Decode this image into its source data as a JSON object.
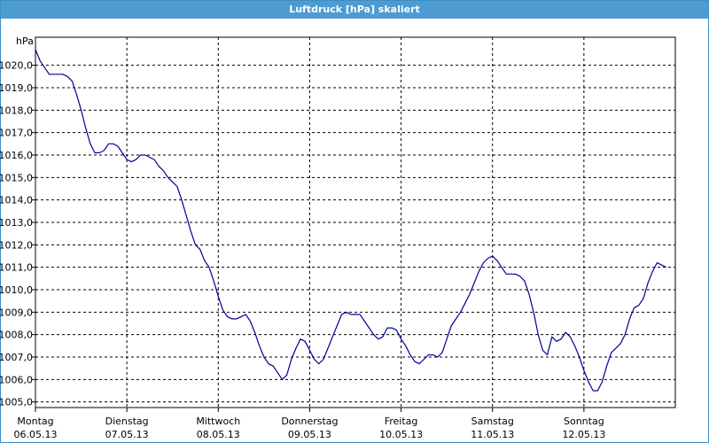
{
  "window": {
    "title": "Luftdruck [hPa] skaliert"
  },
  "chart_data": {
    "type": "line",
    "title": "Luftdruck [hPa] skaliert",
    "ylabel": "hPa",
    "xlabel": "",
    "ylim": [
      1004.75,
      1021.25
    ],
    "yticks": [
      1005,
      1006,
      1007,
      1008,
      1009,
      1010,
      1011,
      1012,
      1013,
      1014,
      1015,
      1016,
      1017,
      1018,
      1019,
      1020
    ],
    "ytick_labels": [
      "1005,0",
      "1006,0",
      "1007,0",
      "1008,0",
      "1009,0",
      "1010,0",
      "1011,0",
      "1012,0",
      "1013,0",
      "1014,0",
      "1015,0",
      "1016,0",
      "1017,0",
      "1018,0",
      "1019,0",
      "1020,0"
    ],
    "xlim": [
      0,
      7
    ],
    "x_unit": "days since 06.05.13 00:00",
    "x_ticks": [
      {
        "day": "Montag",
        "date": "06.05.13"
      },
      {
        "day": "Dienstag",
        "date": "07.05.13"
      },
      {
        "day": "Mittwoch",
        "date": "08.05.13"
      },
      {
        "day": "Donnerstag",
        "date": "09.05.13"
      },
      {
        "day": "Freitag",
        "date": "10.05.13"
      },
      {
        "day": "Samstag",
        "date": "11.05.13"
      },
      {
        "day": "Sonntag",
        "date": "12.05.13"
      }
    ],
    "grid": true,
    "line_color": "#000099",
    "series": [
      {
        "name": "Luftdruck",
        "points": [
          [
            0.0,
            1020.7
          ],
          [
            0.05,
            1020.2
          ],
          [
            0.1,
            1019.9
          ],
          [
            0.15,
            1019.6
          ],
          [
            0.2,
            1019.6
          ],
          [
            0.25,
            1019.6
          ],
          [
            0.3,
            1019.6
          ],
          [
            0.35,
            1019.5
          ],
          [
            0.4,
            1019.3
          ],
          [
            0.45,
            1018.7
          ],
          [
            0.5,
            1018.0
          ],
          [
            0.55,
            1017.2
          ],
          [
            0.6,
            1016.5
          ],
          [
            0.65,
            1016.1
          ],
          [
            0.7,
            1016.1
          ],
          [
            0.75,
            1016.2
          ],
          [
            0.8,
            1016.5
          ],
          [
            0.85,
            1016.5
          ],
          [
            0.9,
            1016.4
          ],
          [
            0.95,
            1016.1
          ],
          [
            1.0,
            1015.8
          ],
          [
            1.05,
            1015.7
          ],
          [
            1.1,
            1015.8
          ],
          [
            1.15,
            1016.0
          ],
          [
            1.2,
            1016.0
          ],
          [
            1.25,
            1015.9
          ],
          [
            1.3,
            1015.8
          ],
          [
            1.35,
            1015.5
          ],
          [
            1.4,
            1015.3
          ],
          [
            1.45,
            1015.0
          ],
          [
            1.5,
            1014.8
          ],
          [
            1.55,
            1014.6
          ],
          [
            1.6,
            1014.0
          ],
          [
            1.65,
            1013.3
          ],
          [
            1.7,
            1012.6
          ],
          [
            1.75,
            1012.0
          ],
          [
            1.8,
            1011.8
          ],
          [
            1.85,
            1011.3
          ],
          [
            1.9,
            1011.0
          ],
          [
            1.95,
            1010.4
          ],
          [
            2.0,
            1009.7
          ],
          [
            2.05,
            1009.1
          ],
          [
            2.1,
            1008.8
          ],
          [
            2.15,
            1008.7
          ],
          [
            2.2,
            1008.7
          ],
          [
            2.25,
            1008.8
          ],
          [
            2.3,
            1008.9
          ],
          [
            2.35,
            1008.6
          ],
          [
            2.4,
            1008.1
          ],
          [
            2.45,
            1007.5
          ],
          [
            2.5,
            1007.0
          ],
          [
            2.55,
            1006.7
          ],
          [
            2.6,
            1006.6
          ],
          [
            2.65,
            1006.3
          ],
          [
            2.7,
            1006.0
          ],
          [
            2.75,
            1006.2
          ],
          [
            2.8,
            1006.9
          ],
          [
            2.85,
            1007.4
          ],
          [
            2.9,
            1007.8
          ],
          [
            2.95,
            1007.7
          ],
          [
            3.0,
            1007.3
          ],
          [
            3.05,
            1006.9
          ],
          [
            3.1,
            1006.7
          ],
          [
            3.15,
            1006.9
          ],
          [
            3.2,
            1007.4
          ],
          [
            3.25,
            1007.9
          ],
          [
            3.3,
            1008.4
          ],
          [
            3.35,
            1008.9
          ],
          [
            3.4,
            1009.0
          ],
          [
            3.45,
            1008.9
          ],
          [
            3.5,
            1008.9
          ],
          [
            3.55,
            1008.9
          ],
          [
            3.6,
            1008.6
          ],
          [
            3.65,
            1008.3
          ],
          [
            3.7,
            1008.0
          ],
          [
            3.75,
            1007.8
          ],
          [
            3.8,
            1007.9
          ],
          [
            3.85,
            1008.3
          ],
          [
            3.9,
            1008.3
          ],
          [
            3.95,
            1008.2
          ],
          [
            4.0,
            1007.8
          ],
          [
            4.05,
            1007.5
          ],
          [
            4.1,
            1007.1
          ],
          [
            4.15,
            1006.8
          ],
          [
            4.2,
            1006.7
          ],
          [
            4.25,
            1006.9
          ],
          [
            4.3,
            1007.1
          ],
          [
            4.35,
            1007.1
          ],
          [
            4.4,
            1007.0
          ],
          [
            4.45,
            1007.2
          ],
          [
            4.5,
            1007.8
          ],
          [
            4.55,
            1008.4
          ],
          [
            4.6,
            1008.7
          ],
          [
            4.65,
            1009.0
          ],
          [
            4.7,
            1009.4
          ],
          [
            4.75,
            1009.8
          ],
          [
            4.8,
            1010.3
          ],
          [
            4.85,
            1010.8
          ],
          [
            4.9,
            1011.2
          ],
          [
            4.95,
            1011.4
          ],
          [
            5.0,
            1011.5
          ],
          [
            5.05,
            1011.3
          ],
          [
            5.1,
            1011.0
          ],
          [
            5.15,
            1010.7
          ],
          [
            5.2,
            1010.7
          ],
          [
            5.25,
            1010.7
          ],
          [
            5.3,
            1010.6
          ],
          [
            5.35,
            1010.4
          ],
          [
            5.4,
            1009.8
          ],
          [
            5.45,
            1009.0
          ],
          [
            5.5,
            1008.0
          ],
          [
            5.55,
            1007.3
          ],
          [
            5.6,
            1007.1
          ],
          [
            5.65,
            1007.9
          ],
          [
            5.7,
            1007.7
          ],
          [
            5.75,
            1007.8
          ],
          [
            5.8,
            1008.1
          ],
          [
            5.85,
            1007.9
          ],
          [
            5.9,
            1007.5
          ],
          [
            5.95,
            1007.0
          ],
          [
            6.0,
            1006.4
          ],
          [
            6.05,
            1005.9
          ],
          [
            6.1,
            1005.5
          ],
          [
            6.15,
            1005.5
          ],
          [
            6.2,
            1005.9
          ],
          [
            6.25,
            1006.6
          ],
          [
            6.3,
            1007.2
          ],
          [
            6.35,
            1007.4
          ],
          [
            6.4,
            1007.6
          ],
          [
            6.45,
            1008.0
          ],
          [
            6.5,
            1008.7
          ],
          [
            6.55,
            1009.2
          ],
          [
            6.6,
            1009.3
          ],
          [
            6.65,
            1009.6
          ],
          [
            6.7,
            1010.3
          ],
          [
            6.75,
            1010.8
          ],
          [
            6.8,
            1011.2
          ],
          [
            6.85,
            1011.1
          ],
          [
            6.9,
            1011.0
          ]
        ]
      }
    ]
  }
}
